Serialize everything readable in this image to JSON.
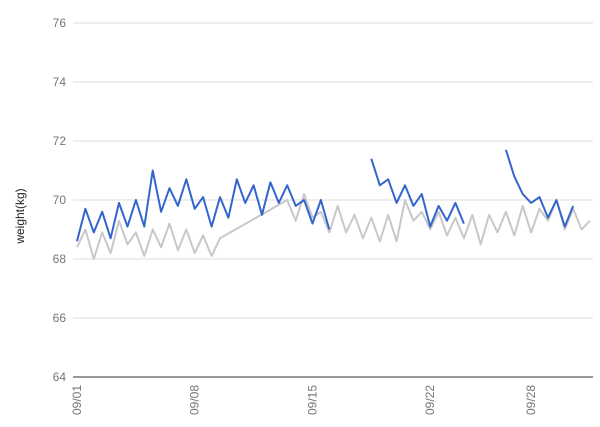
{
  "chart_data": {
    "type": "line",
    "xlabel": "",
    "ylabel": "weight(kg)",
    "ylim": [
      64,
      76
    ],
    "yticks": [
      64,
      66,
      68,
      70,
      72,
      74,
      76
    ],
    "xlim": [
      0,
      30.5
    ],
    "xticks": [
      {
        "label": "09/01",
        "day": 0
      },
      {
        "label": "09/08",
        "day": 7
      },
      {
        "label": "09/15",
        "day": 14
      },
      {
        "label": "09/22",
        "day": 21
      },
      {
        "label": "09/28",
        "day": 27
      }
    ],
    "grid": true,
    "legend": "none",
    "series": [
      {
        "color": "#c8c8c8",
        "points": [
          [
            0.0,
            68.4
          ],
          [
            0.5,
            69.0
          ],
          [
            1.0,
            68.0
          ],
          [
            1.5,
            68.9
          ],
          [
            2.0,
            68.2
          ],
          [
            2.5,
            69.3
          ],
          [
            3.0,
            68.5
          ],
          [
            3.5,
            68.9
          ],
          [
            4.0,
            68.1
          ],
          [
            4.5,
            69.0
          ],
          [
            5.0,
            68.4
          ],
          [
            5.5,
            69.2
          ],
          [
            6.0,
            68.3
          ],
          [
            6.5,
            69.0
          ],
          [
            7.0,
            68.2
          ],
          [
            7.5,
            68.8
          ],
          [
            8.0,
            68.1
          ],
          [
            8.5,
            68.7
          ],
          [
            12.5,
            70.0
          ],
          [
            13.0,
            69.3
          ],
          [
            13.5,
            70.2
          ],
          [
            14.0,
            69.4
          ],
          [
            14.5,
            69.6
          ],
          [
            15.0,
            68.9
          ],
          [
            15.5,
            69.8
          ],
          [
            16.0,
            68.9
          ],
          [
            16.5,
            69.5
          ],
          [
            17.0,
            68.7
          ],
          [
            17.5,
            69.4
          ],
          [
            18.0,
            68.6
          ],
          [
            18.5,
            69.5
          ],
          [
            19.0,
            68.6
          ],
          [
            19.5,
            70.0
          ],
          [
            20.0,
            69.3
          ],
          [
            20.5,
            69.6
          ],
          [
            21.0,
            69.0
          ],
          [
            21.5,
            69.6
          ],
          [
            22.0,
            68.8
          ],
          [
            22.5,
            69.4
          ],
          [
            23.0,
            68.7
          ],
          [
            23.5,
            69.5
          ],
          [
            24.0,
            68.5
          ],
          [
            24.5,
            69.5
          ],
          [
            25.0,
            68.9
          ],
          [
            25.5,
            69.6
          ],
          [
            26.0,
            68.8
          ],
          [
            26.5,
            69.8
          ],
          [
            27.0,
            68.9
          ],
          [
            27.5,
            69.7
          ],
          [
            28.0,
            69.3
          ],
          [
            28.5,
            70.0
          ],
          [
            29.0,
            69.0
          ],
          [
            29.5,
            69.7
          ],
          [
            30.0,
            69.0
          ],
          [
            30.5,
            69.3
          ]
        ]
      },
      {
        "color": "#3366cc",
        "segments": [
          [
            [
              0.0,
              68.6
            ],
            [
              0.5,
              69.7
            ],
            [
              1.0,
              68.9
            ],
            [
              1.5,
              69.6
            ],
            [
              2.0,
              68.7
            ],
            [
              2.5,
              69.9
            ],
            [
              3.0,
              69.1
            ],
            [
              3.5,
              70.0
            ],
            [
              4.0,
              69.1
            ],
            [
              4.5,
              71.0
            ],
            [
              5.0,
              69.6
            ],
            [
              5.5,
              70.4
            ],
            [
              6.0,
              69.8
            ],
            [
              6.5,
              70.7
            ],
            [
              7.0,
              69.7
            ],
            [
              7.5,
              70.1
            ],
            [
              8.0,
              69.1
            ],
            [
              8.5,
              70.1
            ],
            [
              9.0,
              69.4
            ],
            [
              9.5,
              70.7
            ],
            [
              10.0,
              69.9
            ],
            [
              10.5,
              70.5
            ],
            [
              11.0,
              69.5
            ],
            [
              11.5,
              70.6
            ],
            [
              12.0,
              69.9
            ],
            [
              12.5,
              70.5
            ],
            [
              13.0,
              69.8
            ],
            [
              13.5,
              70.0
            ],
            [
              14.0,
              69.2
            ],
            [
              14.5,
              70.0
            ],
            [
              15.0,
              69.0
            ]
          ],
          [
            [
              17.5,
              71.4
            ],
            [
              18.0,
              70.5
            ],
            [
              18.5,
              70.7
            ],
            [
              19.0,
              69.9
            ],
            [
              19.5,
              70.5
            ],
            [
              20.0,
              69.8
            ],
            [
              20.5,
              70.2
            ],
            [
              21.0,
              69.1
            ],
            [
              21.5,
              69.8
            ],
            [
              22.0,
              69.3
            ],
            [
              22.5,
              69.9
            ],
            [
              23.0,
              69.2
            ]
          ],
          [
            [
              25.5,
              71.7
            ],
            [
              26.0,
              70.8
            ],
            [
              26.5,
              70.2
            ],
            [
              27.0,
              69.9
            ],
            [
              27.5,
              70.1
            ],
            [
              28.0,
              69.4
            ],
            [
              28.5,
              70.0
            ],
            [
              29.0,
              69.1
            ],
            [
              29.5,
              69.8
            ]
          ]
        ]
      }
    ]
  }
}
